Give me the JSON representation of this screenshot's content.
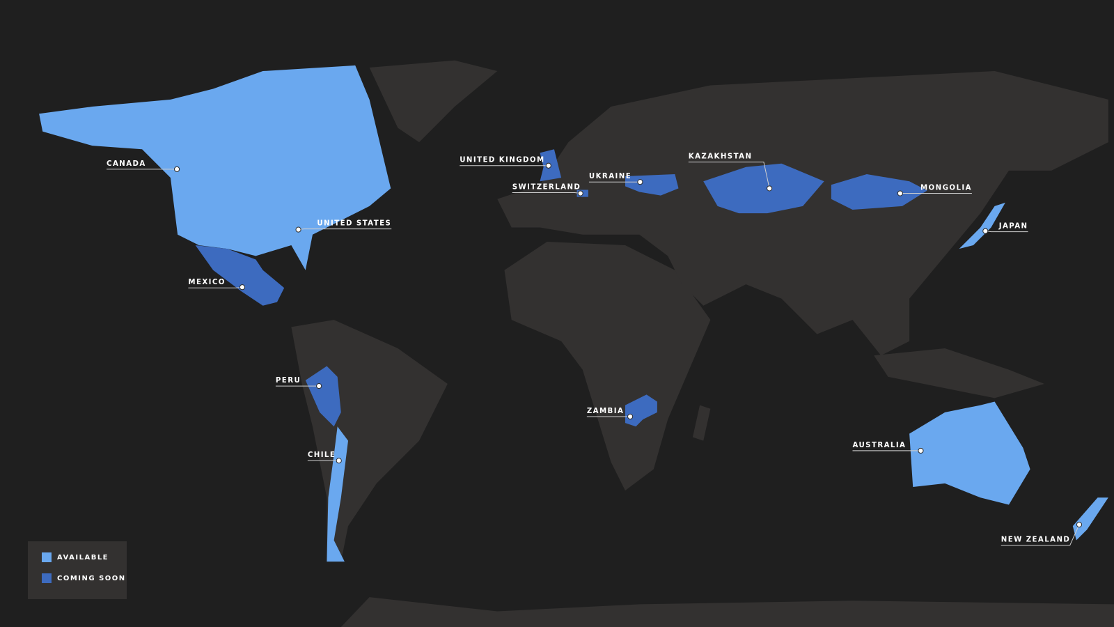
{
  "colors": {
    "background": "#1f1f1f",
    "land": "#333130",
    "available": "#6aa8ef",
    "coming_soon": "#3d6bbf"
  },
  "legend": {
    "available": "AVAILABLE",
    "coming_soon": "COMING SOON"
  },
  "countries": [
    {
      "name": "CANADA",
      "status": "available"
    },
    {
      "name": "UNITED STATES",
      "status": "available"
    },
    {
      "name": "MEXICO",
      "status": "coming_soon"
    },
    {
      "name": "PERU",
      "status": "coming_soon"
    },
    {
      "name": "CHILE",
      "status": "available"
    },
    {
      "name": "UNITED KINGDOM",
      "status": "coming_soon"
    },
    {
      "name": "SWITZERLAND",
      "status": "coming_soon"
    },
    {
      "name": "UKRAINE",
      "status": "coming_soon"
    },
    {
      "name": "KAZAKHSTAN",
      "status": "coming_soon"
    },
    {
      "name": "MONGOLIA",
      "status": "coming_soon"
    },
    {
      "name": "JAPAN",
      "status": "available"
    },
    {
      "name": "ZAMBIA",
      "status": "coming_soon"
    },
    {
      "name": "AUSTRALIA",
      "status": "available"
    },
    {
      "name": "NEW ZEALAND",
      "status": "available"
    }
  ]
}
